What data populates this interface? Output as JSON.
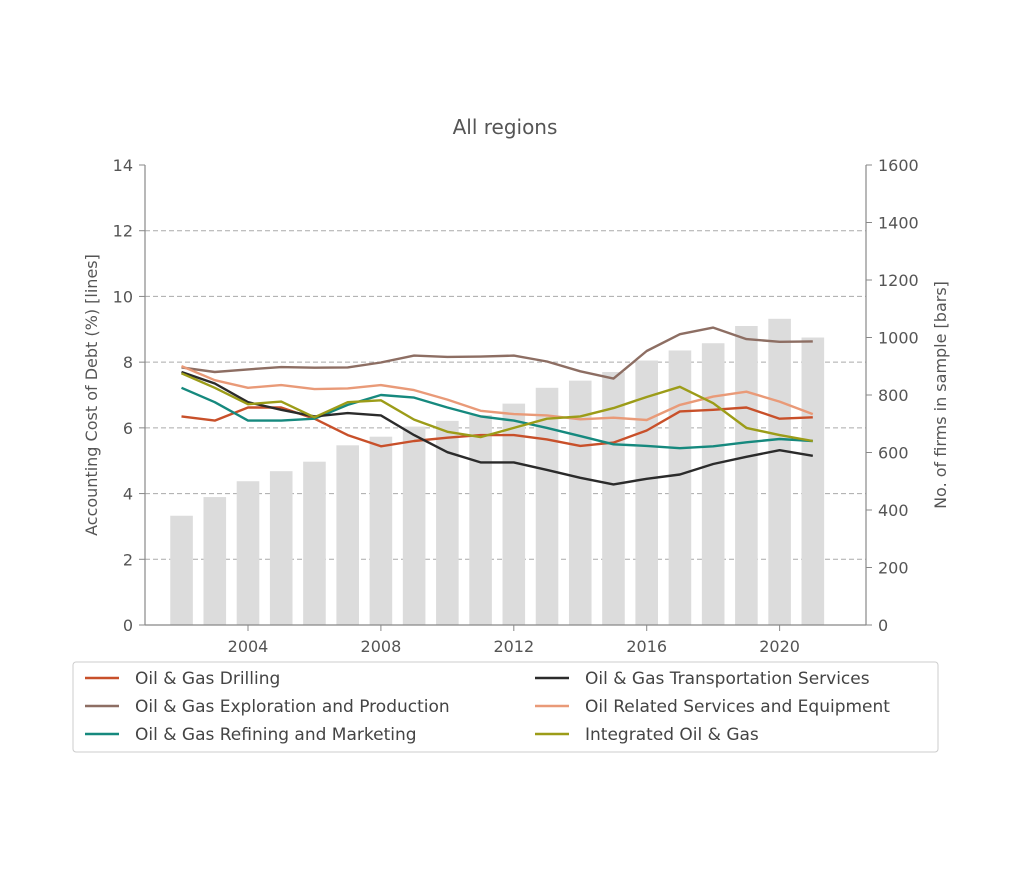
{
  "chart_data": {
    "type": "line",
    "title": "All regions",
    "ylabel_left": "Accounting Cost of Debt (%)  [lines]",
    "ylabel_right": "No. of firms in sample  [bars]",
    "xlabel": "",
    "x": [
      2002,
      2003,
      2004,
      2005,
      2006,
      2007,
      2008,
      2009,
      2010,
      2011,
      2012,
      2013,
      2014,
      2015,
      2016,
      2017,
      2018,
      2019,
      2020,
      2021
    ],
    "xticks": [
      2004,
      2008,
      2012,
      2016,
      2020
    ],
    "xlim": [
      2000.9,
      2022.6
    ],
    "ylim_left": [
      0,
      14
    ],
    "yticks_left": [
      0,
      2,
      4,
      6,
      8,
      10,
      12,
      14
    ],
    "ylim_right": [
      0,
      1600
    ],
    "yticks_right": [
      0,
      200,
      400,
      600,
      800,
      1000,
      1200,
      1400,
      1600
    ],
    "grid": "horizontal dashed",
    "legend_placement": "below",
    "bars": {
      "color": "#dcdcdc",
      "values": [
        380,
        445,
        500,
        535,
        568,
        625,
        655,
        690,
        710,
        730,
        770,
        825,
        850,
        880,
        920,
        955,
        980,
        1040,
        1065,
        1000
      ]
    },
    "series": [
      {
        "name": "Oil & Gas Drilling",
        "color": "#c8502a",
        "values": [
          6.35,
          6.22,
          6.62,
          6.62,
          6.28,
          5.78,
          5.44,
          5.6,
          5.7,
          5.78,
          5.78,
          5.65,
          5.45,
          5.55,
          5.92,
          6.5,
          6.55,
          6.62,
          6.28,
          6.32
        ]
      },
      {
        "name": "Oil & Gas Exploration and Production",
        "color": "#8d6e63",
        "values": [
          7.84,
          7.7,
          7.78,
          7.85,
          7.83,
          7.84,
          7.99,
          8.2,
          8.16,
          8.17,
          8.2,
          8.02,
          7.72,
          7.5,
          8.34,
          8.85,
          9.05,
          8.7,
          8.62,
          8.63
        ]
      },
      {
        "name": "Oil & Gas Refining and Marketing",
        "color": "#16897e",
        "values": [
          7.22,
          6.78,
          6.22,
          6.22,
          6.28,
          6.7,
          7.0,
          6.92,
          6.62,
          6.35,
          6.22,
          6.0,
          5.75,
          5.5,
          5.45,
          5.38,
          5.44,
          5.56,
          5.66,
          5.6
        ]
      },
      {
        "name": "Oil & Gas Transportation Services",
        "color": "#2b2b2b",
        "values": [
          7.7,
          7.35,
          6.78,
          6.55,
          6.35,
          6.45,
          6.38,
          5.78,
          5.26,
          4.95,
          4.95,
          4.72,
          4.48,
          4.28,
          4.45,
          4.58,
          4.9,
          5.12,
          5.32,
          5.15
        ]
      },
      {
        "name": "Oil Related Services and Equipment",
        "color": "#e99a78",
        "values": [
          7.88,
          7.45,
          7.22,
          7.3,
          7.18,
          7.2,
          7.3,
          7.15,
          6.86,
          6.52,
          6.42,
          6.38,
          6.26,
          6.31,
          6.24,
          6.7,
          6.95,
          7.1,
          6.8,
          6.42
        ]
      },
      {
        "name": "Integrated Oil & Gas",
        "color": "#9c9c18",
        "values": [
          7.66,
          7.22,
          6.72,
          6.8,
          6.32,
          6.78,
          6.84,
          6.25,
          5.88,
          5.72,
          6.0,
          6.28,
          6.35,
          6.6,
          6.94,
          7.25,
          6.75,
          6.0,
          5.78,
          5.6
        ]
      }
    ]
  }
}
